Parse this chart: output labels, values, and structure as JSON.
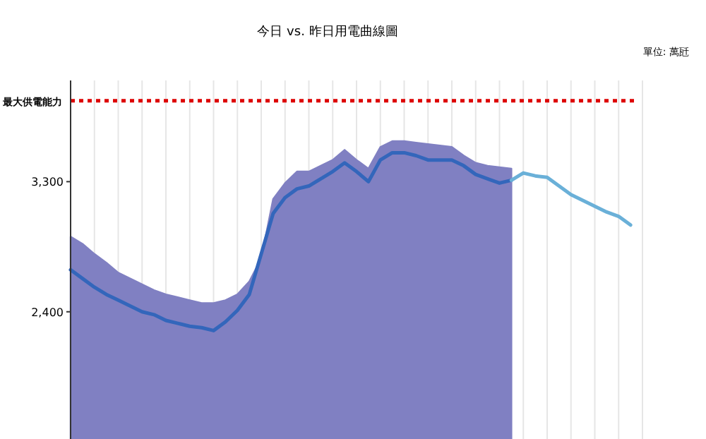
{
  "chart_data": {
    "type": "area",
    "title": "今日 vs. 昨日用電曲線圖",
    "annotations": [
      "單位: 萬瓩"
    ],
    "categories": [
      null,
      null,
      null,
      null,
      null,
      null,
      null,
      null,
      null,
      null,
      null,
      null,
      null,
      null,
      null,
      null,
      null,
      null,
      null,
      null,
      null,
      null,
      null,
      null,
      null,
      null,
      null,
      null,
      null,
      null,
      null,
      null,
      null,
      null,
      null,
      null,
      null,
      null,
      null,
      null,
      null,
      null,
      null,
      null,
      null,
      null,
      null,
      null
    ],
    "series": [
      {
        "color": "#8080c2",
        "values": [
          2920,
          2870,
          2800,
          2740,
          2670,
          2630,
          2590,
          2550,
          2520,
          2500,
          2480,
          2460,
          2460,
          2480,
          2520,
          2610,
          2770,
          3180,
          3290,
          3370,
          3370,
          3410,
          3450,
          3520,
          3450,
          3390,
          3540,
          3580,
          3580,
          3570,
          3560,
          3550,
          3540,
          3480,
          3430,
          3410,
          3400,
          3390,
          null,
          null,
          null,
          null,
          null,
          null,
          null,
          null,
          null,
          null
        ]
      },
      {
        "type": "line",
        "color": "#3366bb",
        "values": [
          2690,
          2630,
          2570,
          2520,
          2480,
          2440,
          2400,
          2380,
          2340,
          2320,
          2300,
          2290,
          2270,
          2330,
          2410,
          2520,
          2800,
          3080,
          3190,
          3250,
          3270,
          3320,
          3370,
          3430,
          3370,
          3300,
          3450,
          3500,
          3500,
          3480,
          3450,
          3450,
          3450,
          3410,
          3350,
          3320,
          3290,
          3310,
          null,
          null,
          null,
          null,
          null,
          null,
          null,
          null,
          null,
          null
        ]
      },
      {
        "type": "line",
        "color": "#6ab0d8",
        "values": [
          null,
          null,
          null,
          null,
          null,
          null,
          null,
          null,
          null,
          null,
          null,
          null,
          null,
          null,
          null,
          null,
          null,
          null,
          null,
          null,
          null,
          null,
          null,
          null,
          null,
          null,
          null,
          null,
          null,
          null,
          null,
          null,
          null,
          null,
          null,
          null,
          null,
          3310,
          3360,
          3340,
          3330,
          3270,
          3210,
          3170,
          3130,
          3090,
          3060,
          3000
        ]
      }
    ],
    "ylim": [
      1520,
      4000
    ],
    "yticks": [
      {
        "value": 2400,
        "label": "2,400"
      },
      {
        "value": 3300,
        "label": "3,300"
      }
    ],
    "ref_lines": [
      {
        "axis": "y",
        "value": 3860,
        "label": "最大供電能力",
        "color": "#dd0000",
        "line_style": "dotted"
      }
    ],
    "grid": "x",
    "tick_labels": "y"
  }
}
